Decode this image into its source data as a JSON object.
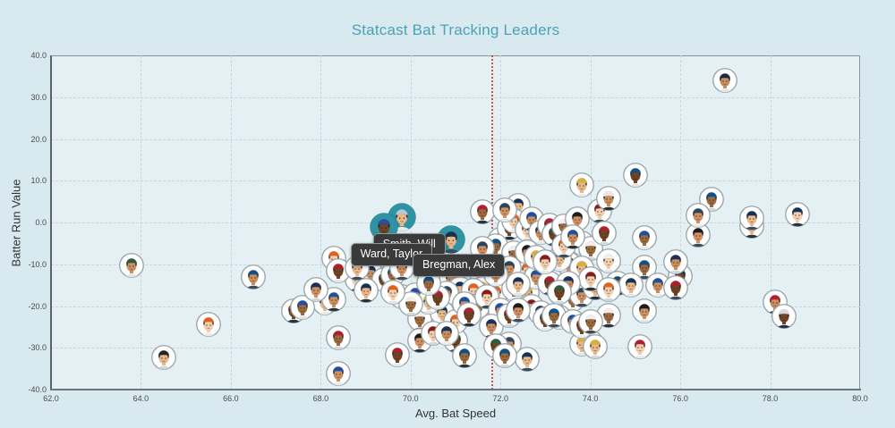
{
  "page": {
    "background": "#d8e9f0"
  },
  "header": {
    "title": "Statcast Bat Tracking Leaders"
  },
  "chart_data": {
    "type": "scatter",
    "title": "Statcast Bat Tracking Leaders",
    "xlabel": "Avg. Bat Speed",
    "ylabel": "Batter Run Value",
    "x_range": [
      62,
      80
    ],
    "y_range": [
      -40,
      40
    ],
    "x_tick_labels": [
      "62.0",
      "64.0",
      "66.0",
      "68.0",
      "70.0",
      "72.0",
      "74.0",
      "76.0",
      "78.0",
      "80.0"
    ],
    "y_tick_labels": [
      "40.0",
      "30.0",
      "20.0",
      "10.0",
      "0.0",
      "-10.0",
      "-20.0",
      "-30.0",
      "-40.0"
    ],
    "grid": "dashed",
    "legend": "none",
    "marker_style": "player headshot avatar in white circle",
    "ref_line": {
      "x": 71.8,
      "orientation": "vertical",
      "style": "dotted",
      "color": "#c0392b"
    },
    "points": [
      [
        63.8,
        -10.3,
        "#2e5d3e"
      ],
      [
        64.5,
        -32.3,
        "#24242a"
      ],
      [
        65.5,
        -24.4,
        "#e3611e"
      ],
      [
        66.5,
        -13,
        "#0f518a"
      ],
      [
        67.4,
        -21.2,
        "#c0313f"
      ],
      [
        67.6,
        -20.3,
        "#1e4fa3"
      ],
      [
        67.9,
        -16,
        "#18305e"
      ],
      [
        68.1,
        -19.3,
        "#b01f2e"
      ],
      [
        68.3,
        -8.5
      ],
      [
        68.3,
        -18.4
      ],
      [
        68.4,
        -11.6
      ],
      [
        68.4,
        -27.6,
        "#b01f2e"
      ],
      [
        68.4,
        -36.2,
        "#1e4fa3"
      ],
      [
        68.8,
        -10.9
      ],
      [
        68.8,
        -13.7
      ],
      [
        69.1,
        -12
      ],
      [
        69.4,
        -13.7
      ],
      [
        69.6,
        -12.4
      ],
      [
        69.8,
        -10.9
      ],
      [
        69,
        -16.3
      ],
      [
        69.6,
        -16.7
      ],
      [
        69.8,
        -17.7
      ],
      [
        69.7,
        -31.6,
        "#b01f2e"
      ],
      [
        70.2,
        -23.1
      ],
      [
        70.2,
        -28.2
      ],
      [
        70.4,
        -19
      ],
      [
        70.5,
        -26.5
      ],
      [
        70.8,
        -26.5
      ],
      [
        71,
        -28.3
      ],
      [
        71.2,
        -31.9
      ],
      [
        70.8,
        -16.9
      ],
      [
        70.7,
        -21.6
      ],
      [
        71,
        -23.7
      ],
      [
        71.2,
        -19.5
      ],
      [
        71.3,
        -22
      ],
      [
        71.5,
        -20.1
      ],
      [
        71.6,
        -13
      ],
      [
        71.6,
        -15.8
      ],
      [
        71.7,
        -17.7
      ],
      [
        71.8,
        -24.8
      ],
      [
        71.9,
        -29.5
      ],
      [
        72.1,
        -31.9
      ],
      [
        72.2,
        -29.1
      ],
      [
        72.6,
        -32.7
      ],
      [
        71.9,
        -16.9
      ],
      [
        72,
        -21
      ],
      [
        72.2,
        -22.2
      ],
      [
        72.3,
        -15.8
      ],
      [
        72.4,
        -21
      ],
      [
        72.6,
        -16.9
      ],
      [
        72.7,
        -20.1
      ],
      [
        72.9,
        -21.6
      ],
      [
        73,
        -23.1
      ],
      [
        73.2,
        -22.2
      ],
      [
        72.2,
        -10.9
      ],
      [
        72.4,
        -14.8
      ],
      [
        72.6,
        -11.3
      ],
      [
        72.8,
        -13
      ],
      [
        73.1,
        -14.5
      ],
      [
        72.3,
        -7.3
      ],
      [
        72.6,
        -7
      ],
      [
        72.8,
        -8.3
      ],
      [
        73,
        -9.4
      ],
      [
        72,
        -4.1
      ],
      [
        72.2,
        -1.3
      ],
      [
        71.9,
        -5.6
      ],
      [
        71.6,
        -6.2
      ],
      [
        73.3,
        -8.8
      ],
      [
        73.4,
        -5.6
      ],
      [
        73.6,
        -3.4
      ],
      [
        73.8,
        -4.9
      ],
      [
        74,
        -6.2
      ],
      [
        73.5,
        -9.8
      ],
      [
        73.8,
        -10.9
      ],
      [
        74,
        -13.4
      ],
      [
        73.5,
        -14.5
      ],
      [
        73.3,
        -16.7
      ],
      [
        73.6,
        -18.4
      ],
      [
        73.8,
        -17.3
      ],
      [
        74.1,
        -15.6
      ],
      [
        73.3,
        -22.7
      ],
      [
        73.6,
        -23.7
      ],
      [
        73.8,
        -24.8
      ],
      [
        74,
        -23.7
      ],
      [
        74,
        -28.7
      ],
      [
        73.8,
        -29.1
      ],
      [
        72.6,
        -1.7
      ],
      [
        72.9,
        -2.4
      ],
      [
        73.2,
        -2.8
      ],
      [
        71.6,
        2.5,
        "#b01f2e"
      ],
      [
        72.1,
        2.9
      ],
      [
        72.4,
        4
      ],
      [
        72.3,
        0.4
      ],
      [
        72.7,
        0.8
      ],
      [
        73.1,
        -0.6
      ],
      [
        73.4,
        -0.9
      ],
      [
        73.7,
        0.8
      ],
      [
        73.8,
        9
      ],
      [
        74.2,
        2.8
      ],
      [
        74.4,
        5.8,
        "#e8e8ea"
      ],
      [
        75,
        11.3,
        "#0f518a"
      ],
      [
        76.7,
        5.6
      ],
      [
        76.4,
        1.8
      ],
      [
        77.6,
        1.1
      ],
      [
        78.6,
        1.9,
        "#18305e"
      ],
      [
        77,
        34,
        "#1b2a4a"
      ],
      [
        74.3,
        -2.6
      ],
      [
        75.2,
        -3.6,
        "#1e4fa3"
      ],
      [
        76.4,
        -3
      ],
      [
        77.6,
        -0.9
      ],
      [
        74.4,
        -9.1,
        "#efefef"
      ],
      [
        75.9,
        -9.4,
        "#18305e"
      ],
      [
        76,
        -12.8,
        "#18305e"
      ],
      [
        75.2,
        -10.7
      ],
      [
        74.6,
        -14.5
      ],
      [
        74.9,
        -15
      ],
      [
        74.4,
        -16
      ],
      [
        75.5,
        -15
      ],
      [
        75.9,
        -15.6
      ],
      [
        74.4,
        -22.2
      ],
      [
        75.2,
        -21.2
      ],
      [
        74.1,
        -29.7
      ],
      [
        75.1,
        -29.7,
        "#b01f2e"
      ],
      [
        78.1,
        -19,
        "#b01f2e"
      ],
      [
        78.3,
        -22.5,
        "#d8d8dc"
      ],
      [
        70.4,
        -14.5
      ],
      [
        70.9,
        -13.4
      ],
      [
        71.1,
        -15.8
      ],
      [
        71.4,
        -16.3
      ],
      [
        70.1,
        -17.3
      ],
      [
        70.6,
        -18
      ],
      [
        70,
        -19.5
      ],
      [
        71.9,
        -12.4
      ]
    ],
    "selected_players": [
      {
        "name": "Smith, Will",
        "x": 69.8,
        "y": 1.3,
        "cap": "#b9c6d8",
        "tooltip_dx": -32,
        "tooltip_dy": 18
      },
      {
        "name": "Ward, Taylor",
        "x": 69.4,
        "y": -1.1,
        "cap": "#2a4fa0",
        "tooltip_dx": -37,
        "tooltip_dy": 18
      },
      {
        "name": "Bregman, Alex",
        "x": 70.9,
        "y": -4.1,
        "cap": "#1c2e4a",
        "tooltip_dx": -43,
        "tooltip_dy": 16
      }
    ],
    "colors": {
      "title": "#4aa3b3",
      "page_bg": "#d8e9f0",
      "plot_bg": "#e4f0f4",
      "grid": "#c6d7db",
      "axis": "#5a646c",
      "tick_text": "#4a4a4a",
      "ref_line": "#c0392b",
      "selected_ring": "#2e93a3",
      "tooltip_bg": "#3a3a3a",
      "tooltip_text": "#ffffff",
      "cap_palette": [
        "#18305e",
        "#b01f2e",
        "#0f518a",
        "#1d1d1f",
        "#13335a",
        "#8a1b1b",
        "#1e4fa3",
        "#2e5d3e",
        "#efefef",
        "#27465f",
        "#d6b23c",
        "#e3611e"
      ],
      "skin_palette": [
        "#f3cfae",
        "#e9b98a",
        "#cf9064",
        "#9c6a3f",
        "#714423",
        "#c98f5e"
      ],
      "jersey_palette": [
        "#e8ebec",
        "#dfe5e8",
        "#3a4b5c",
        "#cfd8dd",
        "#26323e"
      ]
    }
  }
}
